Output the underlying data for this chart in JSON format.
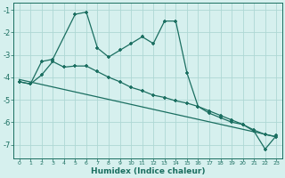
{
  "xlabel": "Humidex (Indice chaleur)",
  "background_color": "#d6f0ee",
  "grid_color": "#aed8d4",
  "line_color": "#1a6e60",
  "xlim": [
    -0.5,
    23.5
  ],
  "ylim": [
    -7.6,
    -0.7
  ],
  "xticks": [
    0,
    1,
    2,
    3,
    4,
    5,
    6,
    7,
    8,
    9,
    10,
    11,
    12,
    13,
    14,
    15,
    16,
    17,
    18,
    19,
    20,
    21,
    22,
    23
  ],
  "yticks": [
    -1,
    -2,
    -3,
    -4,
    -5,
    -6,
    -7
  ],
  "line1_x": [
    0,
    1,
    2,
    3,
    5,
    6,
    7,
    8,
    9,
    10,
    11,
    12,
    13,
    14,
    15,
    16,
    17,
    18,
    19,
    20,
    21,
    22,
    23
  ],
  "line1_y": [
    -4.2,
    -4.3,
    -3.3,
    -3.2,
    -1.2,
    -1.1,
    -2.7,
    -3.1,
    -2.8,
    -2.5,
    -2.2,
    -2.5,
    -1.5,
    -1.5,
    -3.8,
    -5.3,
    -5.6,
    -5.8,
    -6.0,
    -6.1,
    -6.4,
    -7.2,
    -6.6
  ],
  "line2_x": [
    0,
    1,
    2,
    3,
    4,
    5,
    6,
    7,
    8,
    9,
    10,
    11,
    12,
    13,
    14,
    15,
    16,
    17,
    18,
    19,
    20,
    21,
    22,
    23
  ],
  "line2_y": [
    -4.2,
    -4.3,
    -3.9,
    -3.3,
    -3.55,
    -3.5,
    -3.5,
    -3.75,
    -4.0,
    -4.2,
    -4.45,
    -4.6,
    -4.8,
    -4.9,
    -5.05,
    -5.15,
    -5.3,
    -5.5,
    -5.7,
    -5.9,
    -6.1,
    -6.35,
    -6.55,
    -6.65
  ],
  "line3_x": [
    0,
    23
  ],
  "line3_y": [
    -4.1,
    -6.65
  ]
}
